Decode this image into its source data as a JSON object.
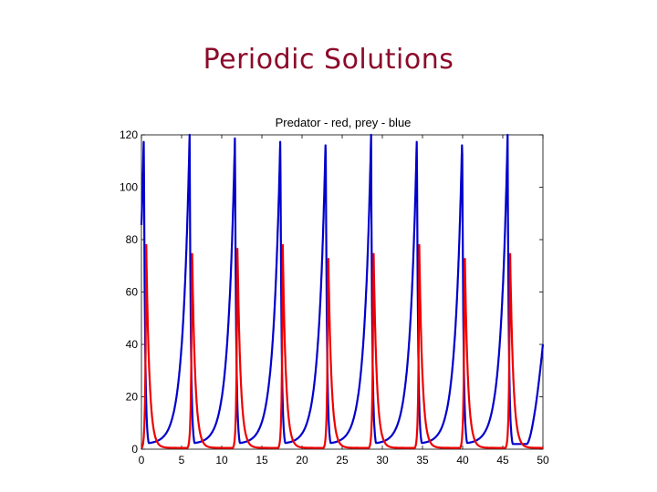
{
  "slide": {
    "title": "Periodic Solutions"
  },
  "colors": {
    "title": "#8b0a2a",
    "prey": "#0000cc",
    "predator": "#ee0000"
  },
  "chart_data": {
    "type": "line",
    "title": "Predator - red, prey - blue",
    "xlabel": "",
    "ylabel": "",
    "xlim": [
      0,
      50
    ],
    "ylim": [
      0,
      120
    ],
    "xticks": [
      0,
      5,
      10,
      15,
      20,
      25,
      30,
      35,
      40,
      45,
      50
    ],
    "yticks": [
      0,
      20,
      40,
      60,
      80,
      100,
      120
    ],
    "grid": false,
    "legend": "none",
    "period": 5.66,
    "series": [
      {
        "key": "prey",
        "color": "#0000cc",
        "peak_times": [
          0.3,
          6.0,
          11.65,
          17.3,
          22.95,
          28.6,
          34.3,
          39.95,
          45.6
        ],
        "peak_value": 120,
        "trough_value": 2,
        "end_value": 40
      },
      {
        "key": "predator",
        "color": "#ee0000",
        "peak_times": [
          0.6,
          6.3,
          11.95,
          17.6,
          23.25,
          28.9,
          34.6,
          40.25,
          45.9
        ],
        "peak_value": 78,
        "trough_value": 0.5
      }
    ]
  }
}
